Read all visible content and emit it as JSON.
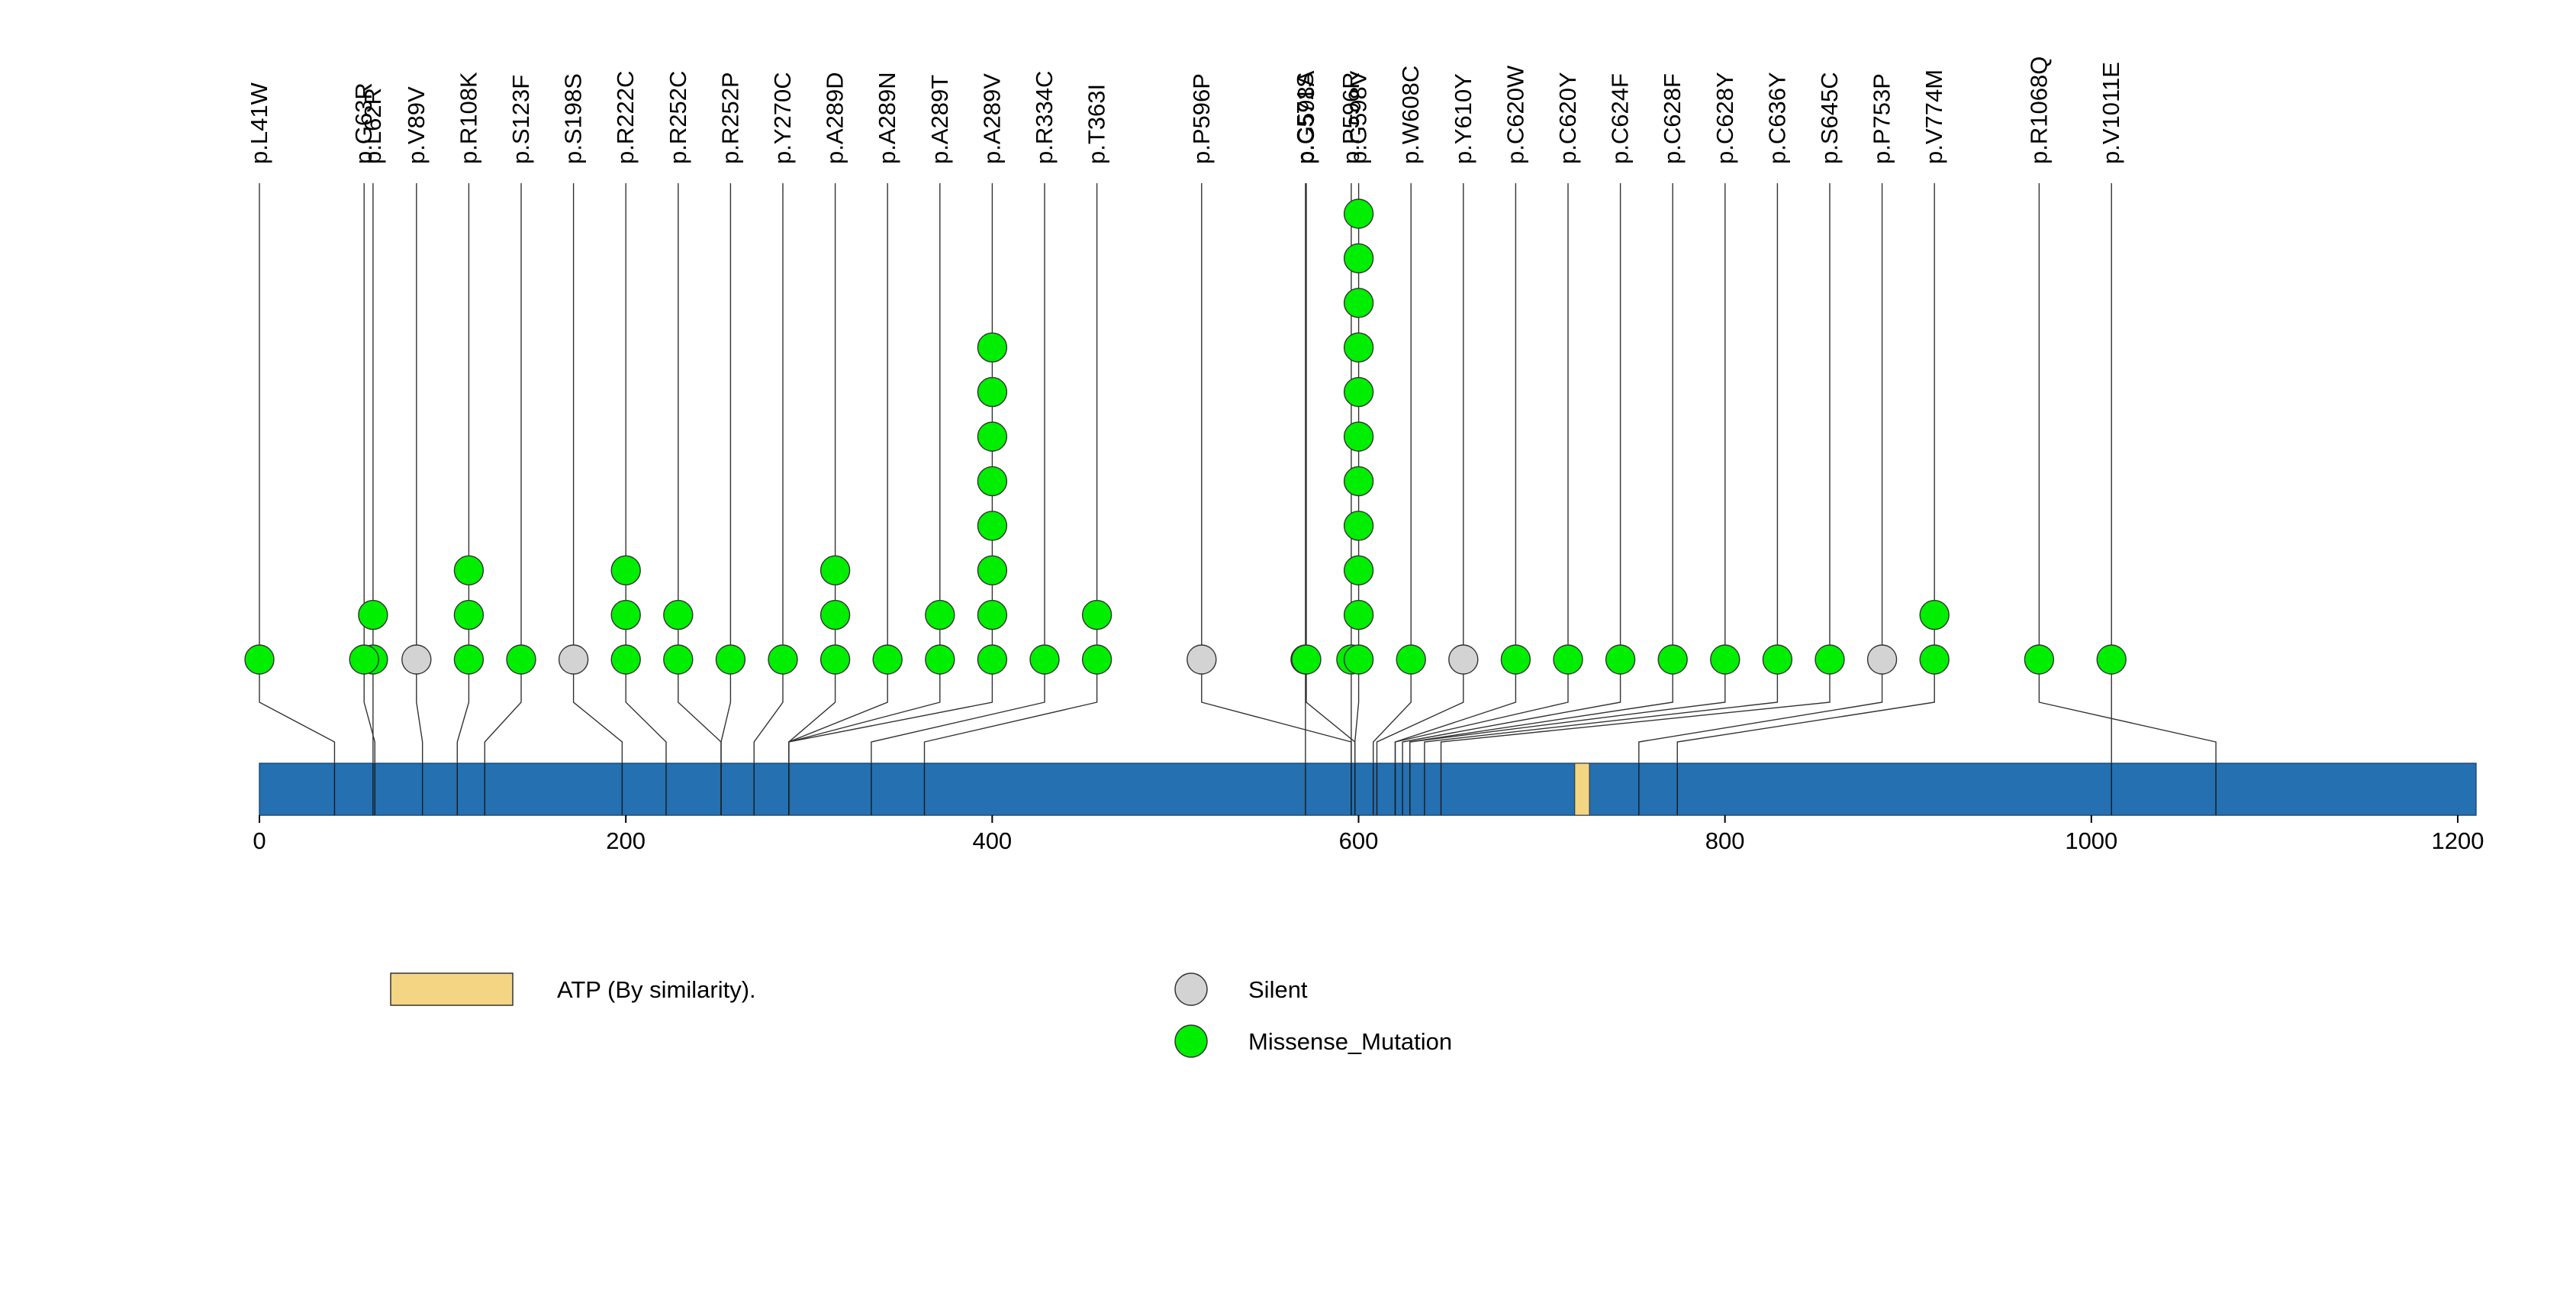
{
  "chart_data": {
    "type": "lollipop",
    "protein_length": 1210,
    "xaxis": {
      "ticks": [
        0,
        200,
        400,
        600,
        800,
        1000,
        1200
      ]
    },
    "domains": [
      {
        "name": "ATP (By similarity).",
        "start": 718,
        "end": 726,
        "color": "#f3d584"
      }
    ],
    "mutation_types": [
      {
        "key": "silent",
        "label": "Silent",
        "color": "#d3d3d3"
      },
      {
        "key": "missense",
        "label": "Missense_Mutation",
        "color": "#00ee00"
      }
    ],
    "mutations": [
      {
        "label": "p.L41W",
        "pos": 41,
        "count": 1,
        "type": "missense"
      },
      {
        "label": "p.L62R",
        "pos": 62,
        "count": 2,
        "type": "missense"
      },
      {
        "label": "p.G63R",
        "pos": 63,
        "count": 1,
        "type": "missense"
      },
      {
        "label": "p.V89V",
        "pos": 89,
        "count": 1,
        "type": "silent"
      },
      {
        "label": "p.R108K",
        "pos": 108,
        "count": 3,
        "type": "missense"
      },
      {
        "label": "p.S123F",
        "pos": 123,
        "count": 1,
        "type": "missense"
      },
      {
        "label": "p.S198S",
        "pos": 198,
        "count": 1,
        "type": "silent"
      },
      {
        "label": "p.R222C",
        "pos": 222,
        "count": 3,
        "type": "missense"
      },
      {
        "label": "p.R252C",
        "pos": 252,
        "count": 2,
        "type": "missense"
      },
      {
        "label": "p.R252P",
        "pos": 252,
        "count": 1,
        "type": "missense"
      },
      {
        "label": "p.Y270C",
        "pos": 270,
        "count": 1,
        "type": "missense"
      },
      {
        "label": "p.A289D",
        "pos": 289,
        "count": 3,
        "type": "missense"
      },
      {
        "label": "p.A289N",
        "pos": 289,
        "count": 1,
        "type": "missense"
      },
      {
        "label": "p.A289T",
        "pos": 289,
        "count": 2,
        "type": "missense"
      },
      {
        "label": "p.A289V",
        "pos": 289,
        "count": 8,
        "type": "missense"
      },
      {
        "label": "p.R334C",
        "pos": 334,
        "count": 1,
        "type": "missense"
      },
      {
        "label": "p.T363I",
        "pos": 363,
        "count": 2,
        "type": "missense"
      },
      {
        "label": "p.C571S",
        "pos": 571,
        "count": 1,
        "type": "missense"
      },
      {
        "label": "p.P596P",
        "pos": 596,
        "count": 1,
        "type": "silent"
      },
      {
        "label": "p.P596R",
        "pos": 596,
        "count": 1,
        "type": "missense"
      },
      {
        "label": "p.G598A",
        "pos": 598,
        "count": 1,
        "type": "missense"
      },
      {
        "label": "p.G598V",
        "pos": 598,
        "count": 11,
        "type": "missense"
      },
      {
        "label": "p.W608C",
        "pos": 608,
        "count": 1,
        "type": "missense"
      },
      {
        "label": "p.Y610Y",
        "pos": 610,
        "count": 1,
        "type": "silent"
      },
      {
        "label": "p.C620W",
        "pos": 620,
        "count": 1,
        "type": "missense"
      },
      {
        "label": "p.C620Y",
        "pos": 620,
        "count": 1,
        "type": "missense"
      },
      {
        "label": "p.C624F",
        "pos": 624,
        "count": 1,
        "type": "missense"
      },
      {
        "label": "p.C628F",
        "pos": 628,
        "count": 1,
        "type": "missense"
      },
      {
        "label": "p.C628Y",
        "pos": 628,
        "count": 1,
        "type": "missense"
      },
      {
        "label": "p.C636Y",
        "pos": 636,
        "count": 1,
        "type": "missense"
      },
      {
        "label": "p.S645C",
        "pos": 645,
        "count": 1,
        "type": "missense"
      },
      {
        "label": "p.P753P",
        "pos": 753,
        "count": 1,
        "type": "silent"
      },
      {
        "label": "p.V774M",
        "pos": 774,
        "count": 2,
        "type": "missense"
      },
      {
        "label": "p.V1011E",
        "pos": 1011,
        "count": 1,
        "type": "missense"
      },
      {
        "label": "p.R1068Q",
        "pos": 1068,
        "count": 1,
        "type": "missense"
      }
    ]
  }
}
